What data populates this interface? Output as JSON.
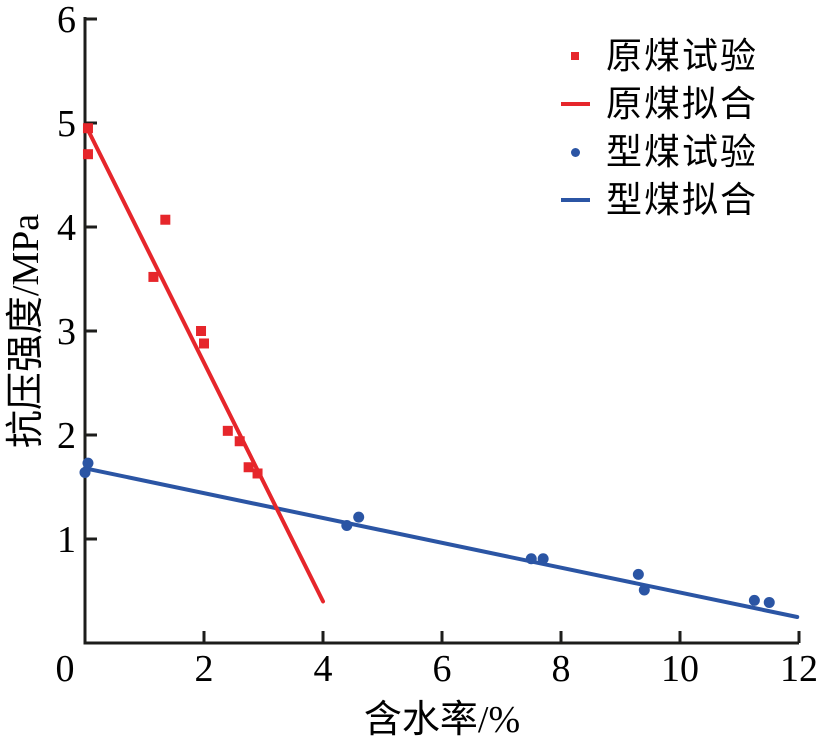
{
  "figure": {
    "background": "#ffffff"
  },
  "chart_data": {
    "type": "scatter",
    "title": "",
    "xlabel": "含水率/%",
    "ylabel": "抗压强度/MPa",
    "xlim": [
      0,
      12
    ],
    "ylim": [
      0,
      6
    ],
    "x_ticks": [
      0,
      2,
      4,
      6,
      8,
      10,
      12
    ],
    "y_ticks": [
      1,
      2,
      3,
      4,
      5,
      6
    ],
    "grid": false,
    "legend_position": "upper-right-inside",
    "colors": {
      "raw_coal": "#e6262b",
      "briquette": "#2b55a4",
      "axis": "#1d1d1b",
      "text": "#000000"
    },
    "series": [
      {
        "name": "原煤试验",
        "kind": "scatter",
        "marker": "square",
        "color_key": "raw_coal",
        "points": [
          [
            0.05,
            4.95
          ],
          [
            0.05,
            4.7
          ],
          [
            1.35,
            4.07
          ],
          [
            1.15,
            3.52
          ],
          [
            1.95,
            3.0
          ],
          [
            2.0,
            2.88
          ],
          [
            2.4,
            2.04
          ],
          [
            2.6,
            1.94
          ],
          [
            2.75,
            1.69
          ],
          [
            2.9,
            1.63
          ]
        ]
      },
      {
        "name": "原煤拟合",
        "kind": "line",
        "color_key": "raw_coal",
        "points": [
          [
            0.07,
            4.91
          ],
          [
            4.0,
            0.4
          ]
        ]
      },
      {
        "name": "型煤试验",
        "kind": "scatter",
        "marker": "circle",
        "color_key": "briquette",
        "points": [
          [
            0.05,
            1.73
          ],
          [
            0.0,
            1.64
          ],
          [
            4.4,
            1.13
          ],
          [
            4.6,
            1.21
          ],
          [
            7.5,
            0.81
          ],
          [
            7.7,
            0.81
          ],
          [
            9.3,
            0.66
          ],
          [
            9.4,
            0.51
          ],
          [
            11.25,
            0.41
          ],
          [
            11.5,
            0.39
          ]
        ]
      },
      {
        "name": "型煤拟合",
        "kind": "line",
        "color_key": "briquette",
        "points": [
          [
            0.0,
            1.68
          ],
          [
            11.97,
            0.25
          ]
        ]
      }
    ]
  }
}
